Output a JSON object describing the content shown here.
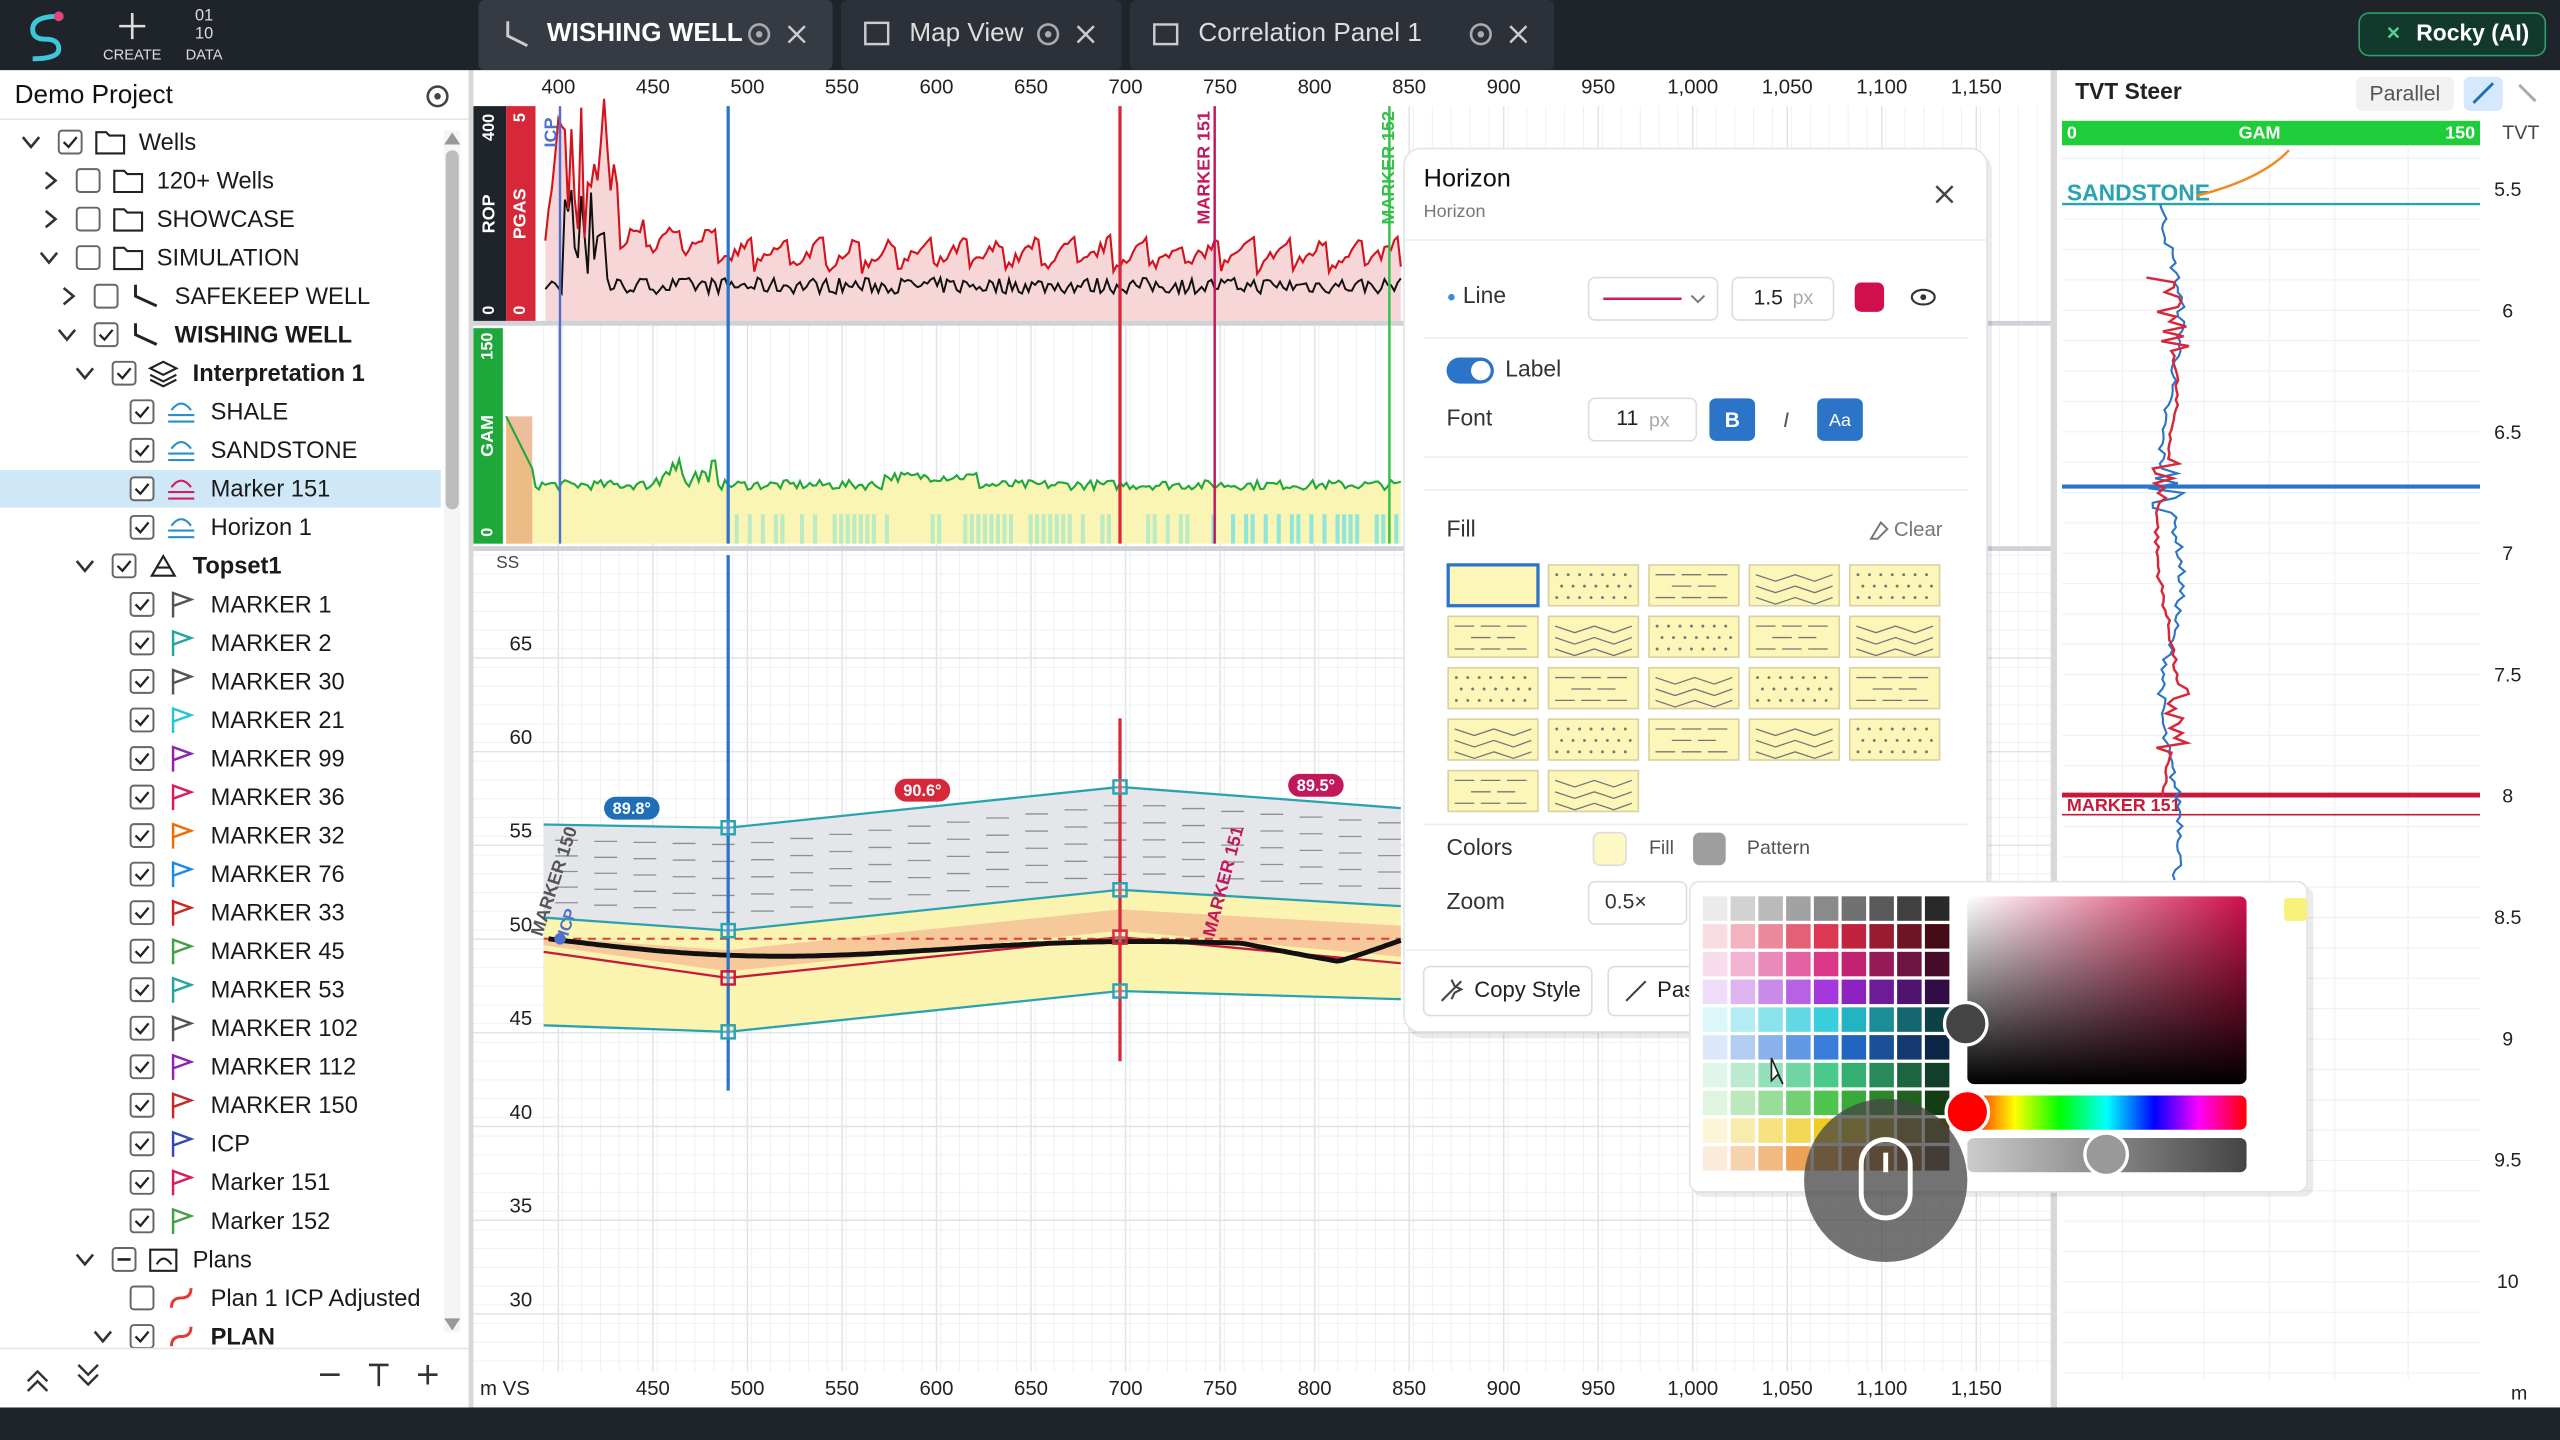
{
  "toolbar": {
    "create": "CREATE",
    "data": "DATA",
    "data_icon": [
      "01",
      "10"
    ]
  },
  "tabs": [
    {
      "label": "WISHING WELL",
      "active": true
    },
    {
      "label": "Map View",
      "active": false
    },
    {
      "label": "Correlation Panel 1",
      "active": false
    }
  ],
  "ai_button": "Rocky (AI)",
  "project": {
    "title": "Demo Project",
    "tree": [
      {
        "label": "Wells",
        "depth": 0,
        "expand": "open",
        "check": "on",
        "icon": "folder"
      },
      {
        "label": "120+ Wells",
        "depth": 1,
        "expand": "closed",
        "check": "off",
        "icon": "folder"
      },
      {
        "label": "SHOWCASE",
        "depth": 1,
        "expand": "closed",
        "check": "off",
        "icon": "folder"
      },
      {
        "label": "SIMULATION",
        "depth": 1,
        "expand": "open",
        "check": "off",
        "icon": "folder"
      },
      {
        "label": "SAFEKEEP WELL",
        "depth": 2,
        "expand": "closed",
        "check": "off",
        "icon": "well"
      },
      {
        "label": "WISHING WELL",
        "depth": 2,
        "expand": "open",
        "check": "on",
        "icon": "well",
        "bold": true
      },
      {
        "label": "Interpretation 1",
        "depth": 3,
        "expand": "open",
        "check": "on",
        "icon": "layers",
        "bold": true
      },
      {
        "label": "SHALE",
        "depth": 4,
        "check": "on",
        "icon": "horizon",
        "color": "#2b8fc9"
      },
      {
        "label": "SANDSTONE",
        "depth": 4,
        "check": "on",
        "icon": "horizon",
        "color": "#2b8fc9"
      },
      {
        "label": "Marker 151",
        "depth": 4,
        "check": "on",
        "icon": "horizon",
        "color": "#d81b60",
        "selected": true
      },
      {
        "label": "Horizon 1",
        "depth": 4,
        "check": "on",
        "icon": "horizon",
        "color": "#2b8fc9"
      },
      {
        "label": "Topset1",
        "depth": 3,
        "expand": "open",
        "check": "on",
        "icon": "topset",
        "bold": true
      },
      {
        "label": "MARKER 1",
        "depth": 4,
        "check": "on",
        "icon": "flag",
        "color": "#555"
      },
      {
        "label": "MARKER 2",
        "depth": 4,
        "check": "on",
        "icon": "flag",
        "color": "#26a69a"
      },
      {
        "label": "MARKER 30",
        "depth": 4,
        "check": "on",
        "icon": "flag",
        "color": "#555"
      },
      {
        "label": "MARKER 21",
        "depth": 4,
        "check": "on",
        "icon": "flag",
        "color": "#26c6da"
      },
      {
        "label": "MARKER 99",
        "depth": 4,
        "check": "on",
        "icon": "flag",
        "color": "#8e24aa"
      },
      {
        "label": "MARKER 36",
        "depth": 4,
        "check": "on",
        "icon": "flag",
        "color": "#d81b60"
      },
      {
        "label": "MARKER 32",
        "depth": 4,
        "check": "on",
        "icon": "flag",
        "color": "#ef6c00"
      },
      {
        "label": "MARKER 76",
        "depth": 4,
        "check": "on",
        "icon": "flag",
        "color": "#1e88e5"
      },
      {
        "label": "MARKER 33",
        "depth": 4,
        "check": "on",
        "icon": "flag",
        "color": "#c62828"
      },
      {
        "label": "MARKER 45",
        "depth": 4,
        "check": "on",
        "icon": "flag",
        "color": "#43a047"
      },
      {
        "label": "MARKER 53",
        "depth": 4,
        "check": "on",
        "icon": "flag",
        "color": "#26a69a"
      },
      {
        "label": "MARKER 102",
        "depth": 4,
        "check": "on",
        "icon": "flag",
        "color": "#555"
      },
      {
        "label": "MARKER 112",
        "depth": 4,
        "check": "on",
        "icon": "flag",
        "color": "#8e24aa"
      },
      {
        "label": "MARKER 150",
        "depth": 4,
        "check": "on",
        "icon": "flag",
        "color": "#c62828"
      },
      {
        "label": "ICP",
        "depth": 4,
        "check": "on",
        "icon": "flag",
        "color": "#3949ab"
      },
      {
        "label": "Marker 151",
        "depth": 4,
        "check": "on",
        "icon": "flag",
        "color": "#d81b60"
      },
      {
        "label": "Marker 152",
        "depth": 4,
        "check": "on",
        "icon": "flag",
        "color": "#43a047"
      },
      {
        "label": "Plans",
        "depth": 3,
        "expand": "open",
        "check": "partial",
        "icon": "plans"
      },
      {
        "label": "Plan 1 ICP Adjusted",
        "depth": 4,
        "check": "off",
        "icon": "plan",
        "color": "#e53935"
      },
      {
        "label": "PLAN",
        "depth": 4,
        "expand": "open",
        "check": "on",
        "icon": "plan",
        "color": "#e53935",
        "bold": true
      }
    ]
  },
  "chart": {
    "top_axis": [
      "400",
      "450",
      "500",
      "550",
      "600",
      "650",
      "700",
      "750",
      "800",
      "850",
      "900",
      "950",
      "1,000",
      "1,050",
      "1,100",
      "1,150"
    ],
    "bottom_axis_unit": "m VS",
    "bottom_axis": [
      "450",
      "500",
      "550",
      "600",
      "650",
      "700",
      "750",
      "800",
      "850",
      "900",
      "950",
      "1,000",
      "1,050",
      "1,100",
      "1,150"
    ],
    "track1": {
      "rop": "ROP",
      "rop_max": "400",
      "rop_min": "0",
      "pgas": "PGAS",
      "pgas_max": "5",
      "pgas_min": "0"
    },
    "track2": {
      "gam": "GAM",
      "gam_max": "150",
      "gam_min": "0"
    },
    "y_axis_unit": "SS",
    "y_axis": [
      "65",
      "60",
      "55",
      "50",
      "45",
      "40",
      "35",
      "30"
    ],
    "dip_labels": [
      {
        "text": "89.8°",
        "color": "#1e6fb8"
      },
      {
        "text": "90.6°",
        "color": "#d62839"
      },
      {
        "text": "89.5°",
        "color": "#c2185b"
      }
    ],
    "marker_labels": {
      "icp": "ICP",
      "m151": "MARKER 151",
      "m152": "MARKER 152",
      "m150": "MARKER 150"
    }
  },
  "horizon_panel": {
    "title": "Horizon",
    "subtitle": "Horizon",
    "line": "Line",
    "line_width": "1.5",
    "px": "px",
    "label": "Label",
    "font": "Font",
    "font_size": "11",
    "bold": "B",
    "italic": "I",
    "case": "Aa",
    "fill": "Fill",
    "clear": "Clear",
    "colors": "Colors",
    "fill_swatch": "Fill",
    "pattern": "Pattern",
    "zoom": "Zoom",
    "zoom_value": "0.5×",
    "copy_style": "Copy Style",
    "paste_style": "Pas"
  },
  "tvt": {
    "title": "TVT Steer",
    "mode": "Parallel",
    "gam_min": "0",
    "gam": "GAM",
    "gam_max": "150",
    "unit": "TVT",
    "sandstone": "SANDSTONE",
    "marker": "MARKER 151",
    "ticks": [
      "5.5",
      "6",
      "6.5",
      "7",
      "7.5",
      "8",
      "8.5",
      "9",
      "9.5",
      "10"
    ],
    "depth_unit": "m"
  }
}
